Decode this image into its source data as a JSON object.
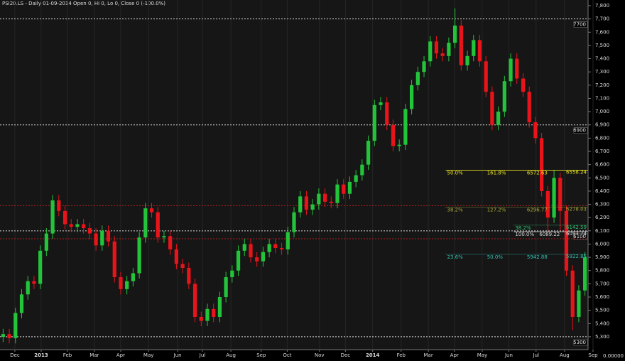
{
  "chart_data": {
    "type": "candlestick",
    "title": "PSI20.LS - Daily 01-09-2014 Open 0, Hi 0, Lo 0, Close 0 (-100.0%)",
    "bottom_label": "0.00000",
    "up_color": "#23c43a",
    "down_color": "#e8141a",
    "open": [
      5300,
      5320,
      5290,
      5480,
      5620,
      5720,
      5700,
      5950,
      6080,
      6330,
      6250,
      6150,
      6130,
      6150,
      6120,
      6080,
      5990,
      6100,
      6020,
      5750,
      5660,
      5720,
      5780,
      6050,
      6270,
      6240,
      6050,
      6060,
      5960,
      5850,
      5820,
      5700,
      5450,
      5420,
      5510,
      5450,
      5600,
      5750,
      5800,
      5950,
      6000,
      5900,
      5870,
      5940,
      6000,
      5970,
      5960,
      6090,
      6240,
      6360,
      6260,
      6300,
      6380,
      6320,
      6310,
      6450,
      6380,
      6470,
      6520,
      6600,
      6780,
      7050,
      7070,
      6900,
      6740,
      6750,
      7020,
      7200,
      7300,
      7380,
      7530,
      7440,
      7420,
      7520,
      7650,
      7350,
      7420,
      7540,
      7380,
      7150,
      6900,
      7000,
      7230,
      7400,
      7250,
      7150,
      6920,
      6800,
      6400,
      6200,
      6500,
      6250,
      5800,
      5450,
      5650
    ],
    "high": [
      5360,
      5360,
      5520,
      5660,
      5760,
      5760,
      5990,
      6120,
      6370,
      6370,
      6290,
      6190,
      6190,
      6190,
      6160,
      6120,
      6140,
      6140,
      6060,
      5790,
      5760,
      5820,
      6090,
      6310,
      6310,
      6280,
      6100,
      6100,
      6000,
      5890,
      5860,
      5740,
      5490,
      5550,
      5550,
      5640,
      5790,
      5840,
      5990,
      6040,
      6040,
      5940,
      5980,
      6040,
      6040,
      6010,
      6130,
      6280,
      6400,
      6400,
      6340,
      6420,
      6420,
      6360,
      6490,
      6490,
      6510,
      6560,
      6640,
      6820,
      7090,
      7110,
      7110,
      6940,
      6790,
      7060,
      7240,
      7340,
      7420,
      7570,
      7570,
      7480,
      7560,
      7780,
      7690,
      7460,
      7580,
      7580,
      7420,
      7190,
      7040,
      7270,
      7440,
      7440,
      7290,
      7190,
      6960,
      6840,
      6440,
      6560,
      6540,
      6290,
      5840,
      5690,
      5940
    ],
    "low": [
      5260,
      5250,
      5250,
      5440,
      5580,
      5660,
      5660,
      5910,
      6040,
      6210,
      6110,
      6090,
      6090,
      6080,
      6040,
      5950,
      5950,
      5980,
      5710,
      5620,
      5620,
      5680,
      5740,
      6010,
      6200,
      6010,
      6010,
      5920,
      5810,
      5780,
      5660,
      5410,
      5380,
      5380,
      5410,
      5410,
      5560,
      5710,
      5760,
      5910,
      5860,
      5830,
      5830,
      5900,
      5930,
      5920,
      5920,
      6050,
      6200,
      6220,
      6220,
      6260,
      6280,
      6270,
      6270,
      6340,
      6340,
      6430,
      6480,
      6560,
      6740,
      7010,
      6860,
      6700,
      6700,
      6710,
      6980,
      7160,
      7260,
      7340,
      7400,
      7380,
      7380,
      7480,
      7310,
      7310,
      7380,
      7340,
      7110,
      6860,
      6860,
      6960,
      7190,
      7210,
      7110,
      6880,
      6760,
      6360,
      6090,
      6160,
      6100,
      5760,
      5350,
      5410,
      5610
    ],
    "close": [
      5320,
      5290,
      5480,
      5620,
      5720,
      5700,
      5950,
      6080,
      6330,
      6250,
      6150,
      6130,
      6150,
      6120,
      6080,
      5990,
      6100,
      6020,
      5750,
      5660,
      5720,
      5780,
      6050,
      6270,
      6240,
      6050,
      6060,
      5960,
      5850,
      5820,
      5700,
      5450,
      5420,
      5510,
      5450,
      5600,
      5750,
      5800,
      5950,
      6000,
      5900,
      5870,
      5940,
      6000,
      5970,
      5960,
      6090,
      6240,
      6360,
      6260,
      6300,
      6380,
      6320,
      6310,
      6450,
      6380,
      6470,
      6520,
      6600,
      6780,
      7050,
      7070,
      6900,
      6740,
      6750,
      7020,
      7200,
      7300,
      7380,
      7530,
      7440,
      7420,
      7520,
      7650,
      7350,
      7420,
      7540,
      7380,
      7150,
      6900,
      7000,
      7230,
      7400,
      7250,
      7150,
      6920,
      6800,
      6400,
      6200,
      6500,
      6250,
      5800,
      5450,
      5650,
      5900
    ],
    "xlim": [
      0,
      95
    ],
    "xticks": [
      {
        "value": 2.4,
        "label": "Dec"
      },
      {
        "value": 6.65,
        "label": "2013"
      },
      {
        "value": 10.9,
        "label": "Feb"
      },
      {
        "value": 15.25,
        "label": "Mar"
      },
      {
        "value": 19.5,
        "label": "Apr"
      },
      {
        "value": 24,
        "label": "May"
      },
      {
        "value": 28.7,
        "label": "Jun"
      },
      {
        "value": 32.7,
        "label": "Jul"
      },
      {
        "value": 37.3,
        "label": "Aug"
      },
      {
        "value": 42.2,
        "label": "Sep"
      },
      {
        "value": 46.4,
        "label": "Oct"
      },
      {
        "value": 51.6,
        "label": "Nov"
      },
      {
        "value": 55.8,
        "label": "Dec"
      },
      {
        "value": 60.2,
        "label": "2014"
      },
      {
        "value": 64.8,
        "label": "Feb"
      },
      {
        "value": 69.2,
        "label": "Mar"
      },
      {
        "value": 73.4,
        "label": "Apr"
      },
      {
        "value": 77.9,
        "label": "May"
      },
      {
        "value": 82.2,
        "label": "Jun"
      },
      {
        "value": 86.6,
        "label": "Jul"
      },
      {
        "value": 91.2,
        "label": "Aug"
      },
      {
        "value": 95.8,
        "label": "Sep"
      }
    ],
    "ylim": [
      5203,
      7843
    ],
    "yticks": [
      {
        "value": 5300,
        "label": "5,300"
      },
      {
        "value": 5400,
        "label": "5,400"
      },
      {
        "value": 5500,
        "label": "5,500"
      },
      {
        "value": 5600,
        "label": "5,600"
      },
      {
        "value": 5700,
        "label": "5,700"
      },
      {
        "value": 5800,
        "label": "5,800"
      },
      {
        "value": 5900,
        "label": "5,900"
      },
      {
        "value": 6000,
        "label": "6,000"
      },
      {
        "value": 6100,
        "label": "6,100"
      },
      {
        "value": 6200,
        "label": "6,200"
      },
      {
        "value": 6300,
        "label": "6,300"
      },
      {
        "value": 6400,
        "label": "6,400"
      },
      {
        "value": 6500,
        "label": "6,500"
      },
      {
        "value": 6600,
        "label": "6,600"
      },
      {
        "value": 6700,
        "label": "6,700"
      },
      {
        "value": 6800,
        "label": "6,800"
      },
      {
        "value": 6900,
        "label": "6,900"
      },
      {
        "value": 7000,
        "label": "7,000"
      },
      {
        "value": 7100,
        "label": "7,100"
      },
      {
        "value": 7200,
        "label": "7,200"
      },
      {
        "value": 7300,
        "label": "7,300"
      },
      {
        "value": 7400,
        "label": "7,400"
      },
      {
        "value": 7500,
        "label": "7,500"
      },
      {
        "value": 7600,
        "label": "7,600"
      },
      {
        "value": 7700,
        "label": "7,700"
      },
      {
        "value": 7800,
        "label": "7,800"
      }
    ],
    "levels": [
      {
        "value": 7700,
        "color": "#d8d8d8"
      },
      {
        "value": 6900,
        "color": "#d8d8d8"
      },
      {
        "value": 6100,
        "color": "#d8d8d8"
      },
      {
        "value": 5300,
        "color": "#d8d8d8"
      },
      {
        "value": 6290,
        "color": "#b02020"
      },
      {
        "value": 6040,
        "color": "#b02020"
      }
    ],
    "fib_lines": [
      {
        "value": 6558.24,
        "color": "#e8e020",
        "start": 72,
        "labels": [
          "50.0%",
          "161.8%",
          "6572.63"
        ]
      },
      {
        "value": 6278.03,
        "color": "#a8a838",
        "start": 72,
        "labels": [
          "38.2%",
          "127.2%",
          "6296.77"
        ]
      },
      {
        "value": 6142.59,
        "color": "#30c070",
        "start": 83,
        "labels": [
          "38.2%"
        ]
      },
      {
        "value": 6093.74,
        "color": "#d8d8d8",
        "start": 83,
        "labels": [
          "100.0%",
          "6089.22"
        ]
      },
      {
        "value": 5922.85,
        "color": "#30c0b0",
        "start": 72,
        "labels": [
          "23.6%",
          "50.0%",
          "5942.88"
        ]
      }
    ]
  }
}
